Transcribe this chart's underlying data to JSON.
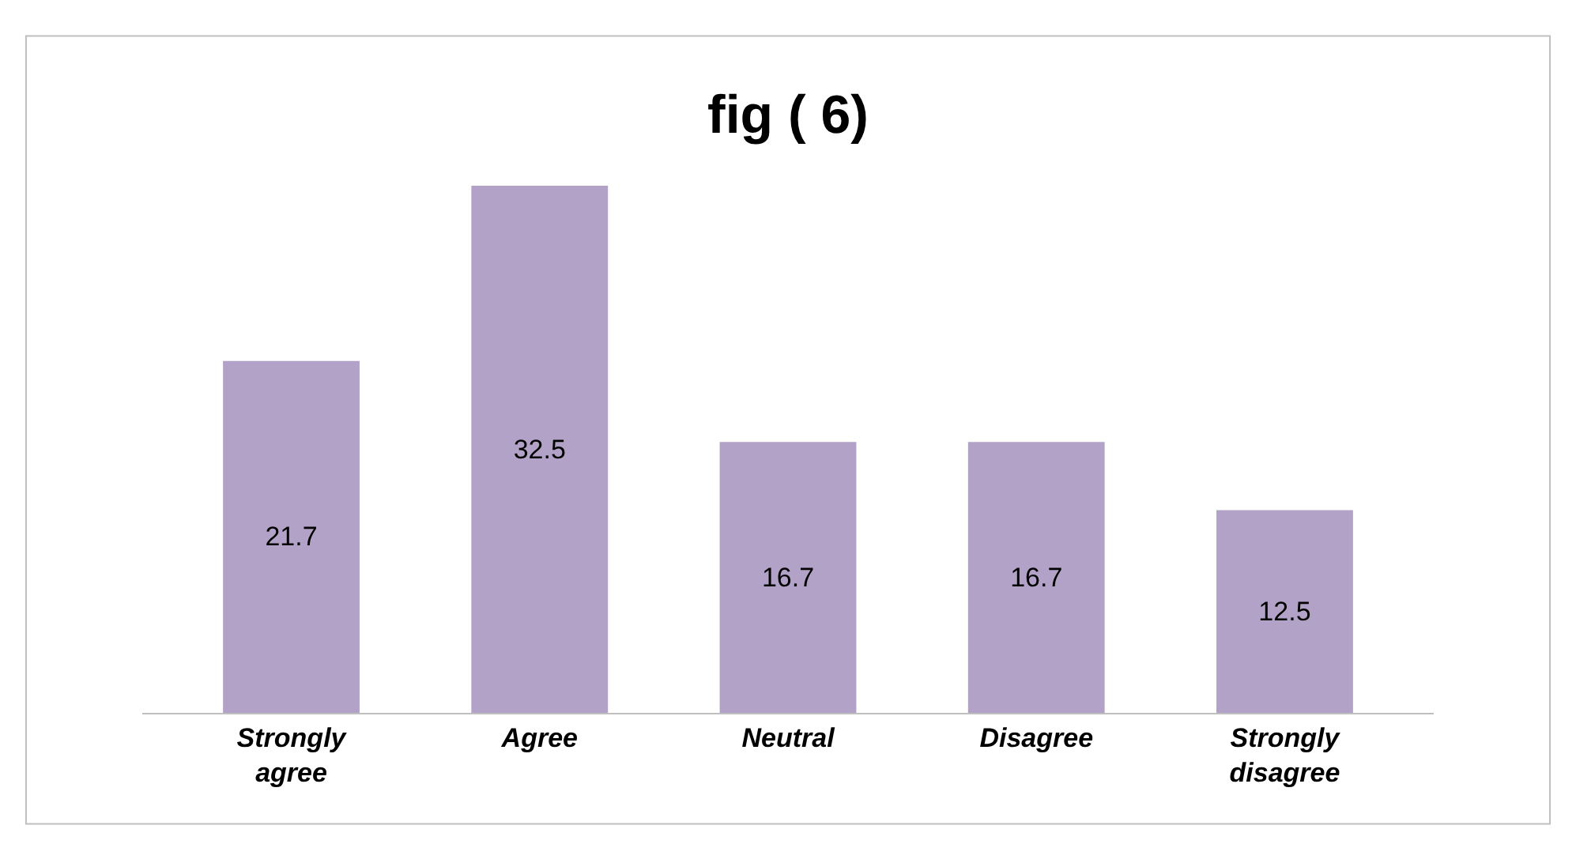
{
  "chart_data": {
    "type": "bar",
    "title": "fig ( 6)",
    "categories": [
      "Strongly\nagree",
      "Agree",
      "Neutral",
      "Disagree",
      "Strongly\ndisagree"
    ],
    "values": [
      21.7,
      32.5,
      16.7,
      16.7,
      12.5
    ],
    "color": "#b3a2c7",
    "data_labels": true
  }
}
